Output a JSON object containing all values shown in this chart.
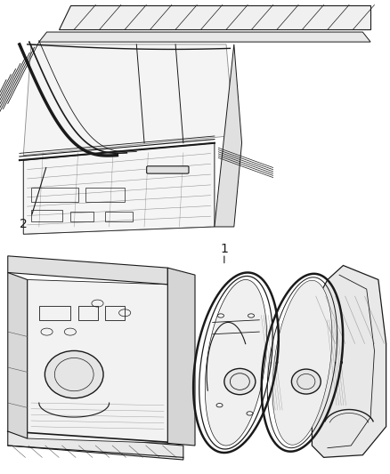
{
  "background_color": "#ffffff",
  "fig_width": 4.38,
  "fig_height": 5.33,
  "dpi": 100,
  "label_1": "1",
  "label_2": "2",
  "line_color": "#1a1a1a",
  "line_color_light": "#555555",
  "line_color_vlight": "#999999"
}
